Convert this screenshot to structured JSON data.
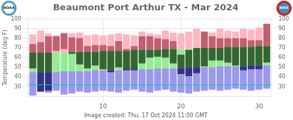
{
  "chart_data": {
    "type": "bar",
    "title": "Beaumont Port Arthur TX - Mar 2024",
    "ylabel": "Temperature (deg F)",
    "annotations": [
      "Image created: Thu, 17 Oct 2024 11:00 GMT"
    ],
    "logos": [
      "NOAA",
      "NWS"
    ],
    "x": [
      1,
      2,
      3,
      4,
      5,
      6,
      7,
      8,
      9,
      10,
      11,
      12,
      13,
      14,
      15,
      16,
      17,
      18,
      19,
      20,
      21,
      22,
      23,
      24,
      25,
      26,
      27,
      28,
      29,
      30,
      31
    ],
    "xlim": [
      0.4,
      31.6
    ],
    "xticks": [
      10,
      20,
      30
    ],
    "ylim": [
      20,
      100
    ],
    "yticks": [
      30,
      40,
      50,
      60,
      70,
      80,
      90,
      100
    ],
    "y2lim": [
      20,
      100
    ],
    "y2ticks": [
      30,
      40,
      50,
      60,
      70,
      80,
      90,
      100
    ],
    "grid": true,
    "series": [
      {
        "color": "#FFB6C1",
        "low": [
          21,
          25,
          24,
          26,
          22,
          23,
          25,
          24,
          25,
          26,
          25,
          24,
          26,
          27,
          25,
          24,
          26,
          27,
          25,
          24,
          23,
          25,
          26,
          27,
          26,
          27,
          28,
          27,
          26,
          27,
          28
        ],
        "high": [
          84,
          88,
          85,
          83,
          86,
          85,
          86,
          83,
          84,
          83,
          84,
          85,
          84,
          83,
          87,
          85,
          84,
          88,
          86,
          85,
          87,
          90,
          87,
          86,
          90,
          88,
          87,
          90,
          89,
          91,
          95
        ]
      },
      {
        "color": "#C06070",
        "low": [
          49,
          25,
          26,
          67,
          69,
          64,
          53,
          49,
          52,
          48,
          45,
          50,
          47,
          47,
          54,
          60,
          61,
          60,
          54,
          43,
          41,
          44,
          51,
          57,
          57,
          55,
          52,
          47,
          48,
          48,
          55
        ],
        "high": [
          74,
          76,
          82,
          82,
          85,
          81,
          80,
          72,
          73,
          73,
          72,
          77,
          69,
          72,
          82,
          82,
          80,
          79,
          77,
          63,
          68,
          70,
          87,
          82,
          80,
          80,
          80,
          80,
          78,
          78,
          95
        ]
      },
      {
        "color": "#90EE90",
        "low": [
          45,
          45,
          45,
          45,
          46,
          46,
          46,
          46,
          47,
          47,
          47,
          47,
          48,
          48,
          48,
          48,
          49,
          49,
          49,
          49,
          50,
          50,
          50,
          50,
          51,
          51,
          51,
          51,
          52,
          52,
          52
        ],
        "high": [
          65,
          65,
          65,
          65,
          65,
          66,
          66,
          66,
          66,
          67,
          67,
          67,
          67,
          68,
          68,
          68,
          68,
          69,
          69,
          69,
          69,
          70,
          70,
          70,
          70,
          71,
          71,
          71,
          71,
          72,
          72
        ]
      },
      {
        "color": "#9999EE",
        "low": [
          21,
          25,
          24,
          26,
          22,
          23,
          25,
          24,
          25,
          26,
          25,
          24,
          26,
          27,
          25,
          24,
          26,
          27,
          25,
          24,
          23,
          25,
          26,
          27,
          26,
          27,
          28,
          27,
          26,
          27,
          28
        ],
        "high": [
          45,
          45,
          45,
          45,
          46,
          46,
          46,
          46,
          47,
          47,
          47,
          47,
          48,
          48,
          48,
          48,
          49,
          49,
          49,
          49,
          50,
          50,
          50,
          50,
          51,
          51,
          51,
          51,
          52,
          52,
          52
        ]
      },
      {
        "color": "#336633",
        "low": [
          49,
          45,
          45,
          null,
          null,
          64,
          53,
          49,
          52,
          48,
          47,
          50,
          48,
          48,
          54,
          60,
          61,
          60,
          54,
          49,
          50,
          50,
          51,
          57,
          57,
          55,
          52,
          51,
          52,
          52,
          55
        ],
        "high": [
          65,
          65,
          65,
          null,
          null,
          66,
          66,
          66,
          66,
          67,
          67,
          67,
          67,
          68,
          68,
          68,
          68,
          69,
          69,
          63,
          68,
          70,
          70,
          70,
          70,
          71,
          71,
          71,
          71,
          72,
          72
        ]
      },
      {
        "color": "#333388",
        "low": [
          null,
          25,
          26,
          null,
          null,
          null,
          null,
          null,
          null,
          null,
          45,
          null,
          47,
          47,
          null,
          null,
          null,
          null,
          null,
          43,
          41,
          44,
          null,
          null,
          null,
          null,
          null,
          47,
          48,
          48,
          null
        ],
        "high": [
          null,
          45,
          45,
          null,
          null,
          null,
          null,
          null,
          null,
          null,
          47,
          null,
          48,
          48,
          null,
          null,
          null,
          null,
          null,
          49,
          50,
          50,
          null,
          null,
          null,
          null,
          null,
          51,
          52,
          52,
          null
        ]
      }
    ],
    "hlines": [
      {
        "value": 32,
        "color": "#00CCCC"
      }
    ]
  }
}
